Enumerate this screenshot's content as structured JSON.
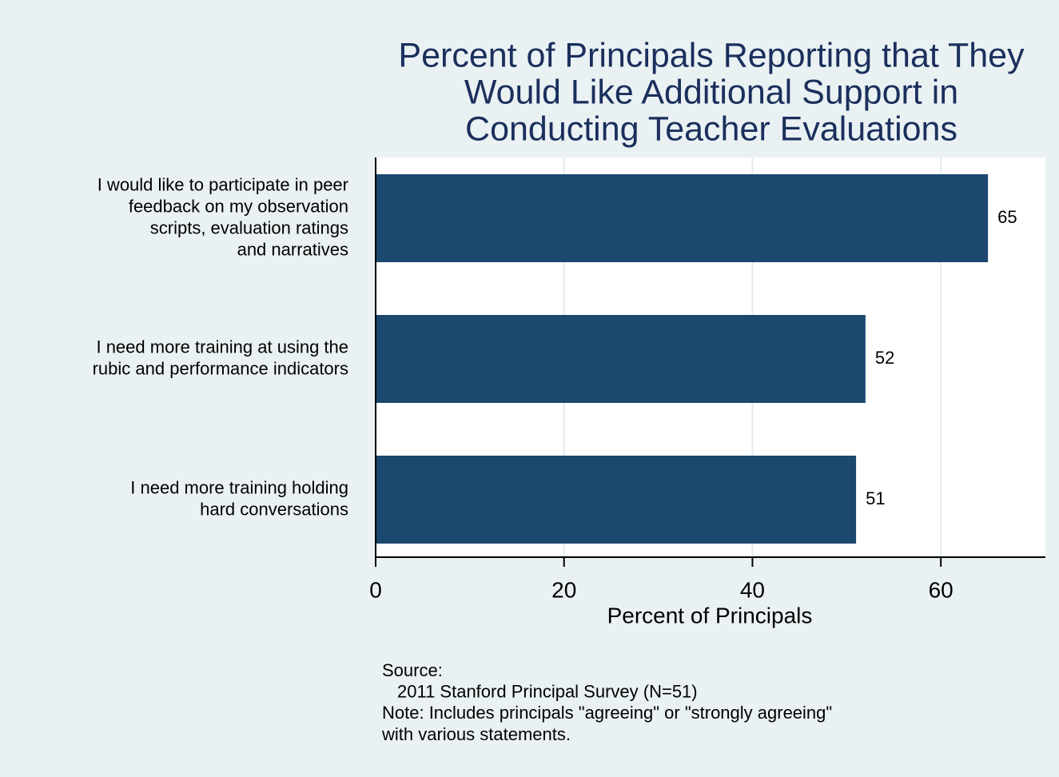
{
  "chart_data": {
    "type": "barh",
    "title": [
      "Percent of Principals Reporting that They",
      "Would Like Additional Support in",
      "Conducting Teacher Evaluations"
    ],
    "categories": [
      [
        "I would like to participate in peer",
        "feedback on my observation",
        "scripts, evaluation ratings",
        "and narratives"
      ],
      [
        "I need more training at using the",
        "rubic and performance indicators"
      ],
      [
        "I need more training holding",
        "hard conversations"
      ]
    ],
    "values": [
      65,
      52,
      51
    ],
    "color": "#1c476f",
    "xlabel": "Percent of Principals",
    "xlim": [
      0,
      71.1
    ],
    "xticks": [
      0,
      20,
      40,
      60
    ],
    "grid": true,
    "notes": [
      "Source:",
      "2011 Stanford Principal Survey (N=51)",
      "Note: Includes principals \"agreeing\" or \"strongly agreeing\"",
      "with various statements."
    ]
  }
}
